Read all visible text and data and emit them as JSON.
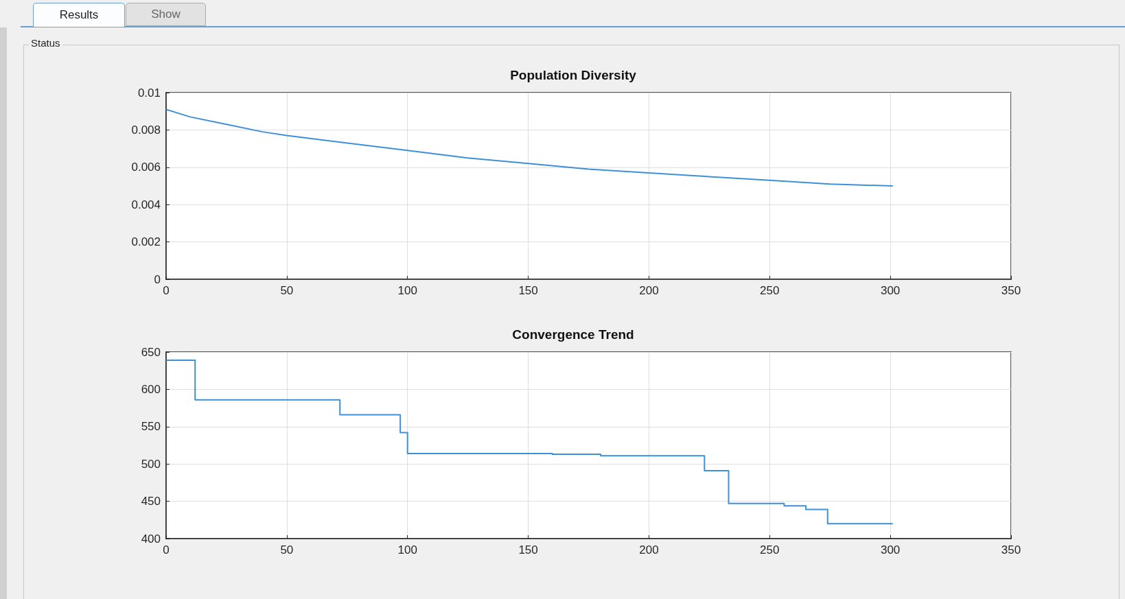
{
  "chart_data": [
    {
      "type": "line",
      "title": "Population Diversity",
      "annotations": [
        "Results",
        "Show",
        "Status"
      ],
      "x": [
        0,
        10,
        25,
        40,
        50,
        75,
        100,
        125,
        150,
        175,
        200,
        225,
        250,
        275,
        301
      ],
      "series": [
        {
          "color": "#3d8fd8",
          "values": [
            0.0091,
            0.0087,
            0.0083,
            0.0079,
            0.0077,
            0.0073,
            0.0069,
            0.0065,
            0.0062,
            0.0059,
            0.0057,
            0.0055,
            0.0053,
            0.0051,
            0.005
          ]
        }
      ],
      "xlim": [
        0,
        350
      ],
      "xticks": [
        0,
        50,
        100,
        150,
        200,
        250,
        300,
        350
      ],
      "ylim": [
        0,
        0.01
      ],
      "yticks": [
        0,
        0.002,
        0.004,
        0.006,
        0.008,
        0.01
      ],
      "grid": true
    },
    {
      "type": "step",
      "title": "Convergence Trend",
      "x": [
        0,
        12,
        72,
        97,
        100,
        160,
        180,
        223,
        233,
        256,
        265,
        274,
        301
      ],
      "series": [
        {
          "color": "#3d8fd8",
          "values": [
            639,
            586,
            566,
            542,
            514,
            513,
            511,
            491,
            447,
            444,
            439,
            420,
            420
          ]
        }
      ],
      "xlim": [
        0,
        350
      ],
      "xticks": [
        0,
        50,
        100,
        150,
        200,
        250,
        300,
        350
      ],
      "ylim": [
        400,
        650
      ],
      "yticks": [
        400,
        450,
        500,
        550,
        600,
        650
      ],
      "grid": true
    }
  ]
}
